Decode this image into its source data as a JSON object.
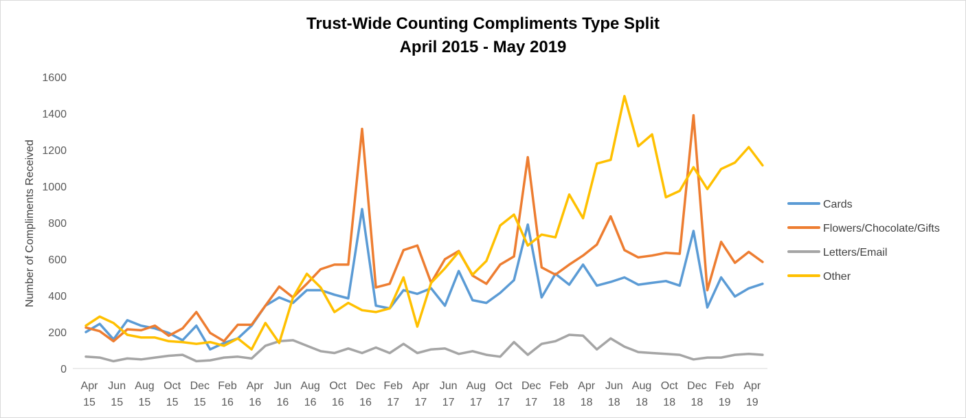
{
  "chart_data": {
    "type": "line",
    "title": "Trust-Wide Counting Compliments Type Split",
    "subtitle": "April 2015 - May 2019",
    "xlabel": "",
    "ylabel": "Number of Compliments Received",
    "ylim": [
      0,
      1600
    ],
    "yticks": [
      "0",
      "200",
      "400",
      "600",
      "800",
      "1000",
      "1200",
      "1400",
      "1600"
    ],
    "grid": false,
    "legend_position": "right",
    "x_tick_labels": [
      [
        "Apr",
        "15"
      ],
      [
        "Jun",
        "15"
      ],
      [
        "Aug",
        "15"
      ],
      [
        "Oct",
        "15"
      ],
      [
        "Dec",
        "15"
      ],
      [
        "Feb",
        "16"
      ],
      [
        "Apr",
        "16"
      ],
      [
        "Jun",
        "16"
      ],
      [
        "Aug",
        "16"
      ],
      [
        "Oct",
        "16"
      ],
      [
        "Dec",
        "16"
      ],
      [
        "Feb",
        "17"
      ],
      [
        "Apr",
        "17"
      ],
      [
        "Jun",
        "17"
      ],
      [
        "Aug",
        "17"
      ],
      [
        "Oct",
        "17"
      ],
      [
        "Dec",
        "17"
      ],
      [
        "Feb",
        "18"
      ],
      [
        "Apr",
        "18"
      ],
      [
        "Jun",
        "18"
      ],
      [
        "Aug",
        "18"
      ],
      [
        "Oct",
        "18"
      ],
      [
        "Dec",
        "18"
      ],
      [
        "Feb",
        "19"
      ],
      [
        "Apr",
        "19"
      ]
    ],
    "categories": [
      "Apr 15",
      "May 15",
      "Jun 15",
      "Jul 15",
      "Aug 15",
      "Sep 15",
      "Oct 15",
      "Nov 15",
      "Dec 15",
      "Jan 16",
      "Feb 16",
      "Mar 16",
      "Apr 16",
      "May 16",
      "Jun 16",
      "Jul 16",
      "Aug 16",
      "Sep 16",
      "Oct 16",
      "Nov 16",
      "Dec 16",
      "Jan 17",
      "Feb 17",
      "Mar 17",
      "Apr 17",
      "May 17",
      "Jun 17",
      "Jul 17",
      "Aug 17",
      "Sep 17",
      "Oct 17",
      "Nov 17",
      "Dec 17",
      "Jan 18",
      "Feb 18",
      "Mar 18",
      "Apr 18",
      "May 18",
      "Jun 18",
      "Jul 18",
      "Aug 18",
      "Sep 18",
      "Oct 18",
      "Nov 18",
      "Dec 18",
      "Jan 19",
      "Feb 19",
      "Mar 19",
      "Apr 19",
      "May 19"
    ],
    "series": [
      {
        "name": "Cards",
        "color": "#5b9bd5",
        "values": [
          200,
          245,
          160,
          265,
          235,
          220,
          195,
          155,
          235,
          105,
          140,
          165,
          235,
          345,
          390,
          360,
          430,
          430,
          405,
          385,
          875,
          345,
          330,
          430,
          410,
          440,
          345,
          535,
          375,
          360,
          415,
          485,
          790,
          390,
          520,
          460,
          570,
          455,
          475,
          500,
          460,
          470,
          480,
          455,
          755,
          335,
          500,
          395,
          440,
          465
        ]
      },
      {
        "name": "Flowers/Chocolate/Gifts",
        "color": "#ed7d31",
        "values": [
          225,
          205,
          150,
          215,
          210,
          235,
          180,
          220,
          310,
          195,
          150,
          240,
          240,
          345,
          450,
          390,
          465,
          545,
          570,
          570,
          1315,
          445,
          465,
          650,
          675,
          470,
          600,
          645,
          510,
          465,
          570,
          615,
          1160,
          555,
          515,
          570,
          620,
          680,
          835,
          650,
          610,
          620,
          635,
          630,
          1390,
          430,
          695,
          580,
          640,
          585
        ]
      },
      {
        "name": "Letters/Email",
        "color": "#a5a5a5",
        "values": [
          65,
          60,
          40,
          55,
          50,
          60,
          70,
          75,
          40,
          45,
          60,
          65,
          55,
          125,
          150,
          155,
          125,
          95,
          85,
          110,
          85,
          115,
          85,
          135,
          85,
          105,
          110,
          80,
          95,
          75,
          65,
          145,
          75,
          135,
          150,
          185,
          180,
          105,
          165,
          120,
          90,
          85,
          80,
          75,
          50,
          60,
          60,
          75,
          80,
          75
        ]
      },
      {
        "name": "Other",
        "color": "#ffc000",
        "values": [
          235,
          285,
          250,
          185,
          170,
          170,
          150,
          145,
          135,
          145,
          125,
          165,
          105,
          250,
          140,
          390,
          520,
          445,
          310,
          360,
          320,
          310,
          330,
          500,
          230,
          470,
          550,
          640,
          515,
          590,
          785,
          845,
          675,
          735,
          720,
          955,
          825,
          1125,
          1145,
          1495,
          1220,
          1285,
          940,
          975,
          1105,
          985,
          1095,
          1130,
          1215,
          1115
        ]
      }
    ]
  }
}
